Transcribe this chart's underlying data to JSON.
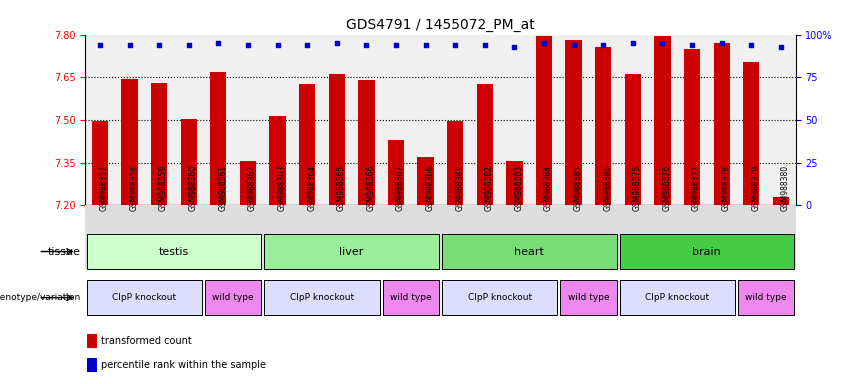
{
  "title": "GDS4791 / 1455072_PM_at",
  "samples": [
    "GSM988357",
    "GSM988358",
    "GSM988359",
    "GSM988360",
    "GSM988361",
    "GSM988362",
    "GSM988363",
    "GSM988364",
    "GSM988365",
    "GSM988366",
    "GSM988367",
    "GSM988368",
    "GSM988381",
    "GSM988382",
    "GSM988383",
    "GSM988384",
    "GSM988385",
    "GSM988386",
    "GSM988375",
    "GSM988376",
    "GSM988377",
    "GSM988378",
    "GSM988379",
    "GSM988380"
  ],
  "bar_values": [
    7.495,
    7.645,
    7.63,
    7.505,
    7.67,
    7.355,
    7.515,
    7.625,
    7.66,
    7.64,
    7.43,
    7.37,
    7.495,
    7.625,
    7.355,
    7.795,
    7.78,
    7.755,
    7.66,
    7.795,
    7.75,
    7.77,
    7.705,
    7.23
  ],
  "percentile_values": [
    7.762,
    7.762,
    7.762,
    7.762,
    7.772,
    7.762,
    7.762,
    7.762,
    7.772,
    7.762,
    7.762,
    7.762,
    7.762,
    7.762,
    7.755,
    7.772,
    7.762,
    7.762,
    7.77,
    7.772,
    7.762,
    7.77,
    7.762,
    7.755
  ],
  "ymin": 7.2,
  "ymax": 7.8,
  "yticks": [
    7.2,
    7.35,
    7.5,
    7.65,
    7.8
  ],
  "right_ytick_vals": [
    0,
    25,
    50,
    75,
    100
  ],
  "bar_color": "#CC0000",
  "dot_color": "#0000CC",
  "tissue_groups": [
    {
      "label": "testis",
      "start": 0,
      "end": 6,
      "color": "#ccffcc"
    },
    {
      "label": "liver",
      "start": 6,
      "end": 12,
      "color": "#99ee99"
    },
    {
      "label": "heart",
      "start": 12,
      "end": 18,
      "color": "#77dd77"
    },
    {
      "label": "brain",
      "start": 18,
      "end": 24,
      "color": "#44cc44"
    }
  ],
  "geno_groups": [
    {
      "label": "ClpP knockout",
      "start": 0,
      "end": 4,
      "color": "#ddddff"
    },
    {
      "label": "wild type",
      "start": 4,
      "end": 6,
      "color": "#ee88ee"
    },
    {
      "label": "ClpP knockout",
      "start": 6,
      "end": 10,
      "color": "#ddddff"
    },
    {
      "label": "wild type",
      "start": 10,
      "end": 12,
      "color": "#ee88ee"
    },
    {
      "label": "ClpP knockout",
      "start": 12,
      "end": 16,
      "color": "#ddddff"
    },
    {
      "label": "wild type",
      "start": 16,
      "end": 18,
      "color": "#ee88ee"
    },
    {
      "label": "ClpP knockout",
      "start": 18,
      "end": 22,
      "color": "#ddddff"
    },
    {
      "label": "wild type",
      "start": 22,
      "end": 24,
      "color": "#ee88ee"
    }
  ],
  "legend_items": [
    {
      "label": "transformed count",
      "color": "#CC0000"
    },
    {
      "label": "percentile rank within the sample",
      "color": "#0000CC"
    }
  ],
  "bg_color": "#ffffff",
  "plot_bg": "#f0f0f0",
  "title_fontsize": 10,
  "tick_fontsize": 7,
  "sample_fontsize": 5.5,
  "label_fontsize": 8,
  "small_fontsize": 6.5
}
